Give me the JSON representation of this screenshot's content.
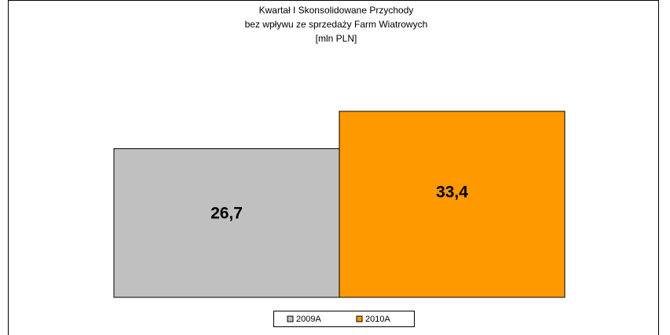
{
  "chart_data": {
    "type": "bar",
    "title": [
      "Kwartał I Skonsolidowane Przychody",
      "bez wpływu ze sprzedaży Farm Wiatrowych",
      "[mln PLN]"
    ],
    "categories": [
      null
    ],
    "series": [
      {
        "name": "2009A",
        "color": "#c0c0c0",
        "values": [
          26.7
        ],
        "value_labels": [
          "26,7"
        ]
      },
      {
        "name": "2010A",
        "color": "#ff9900",
        "values": [
          33.4
        ],
        "value_labels": [
          "33,4"
        ]
      }
    ],
    "legend": "bottom"
  }
}
